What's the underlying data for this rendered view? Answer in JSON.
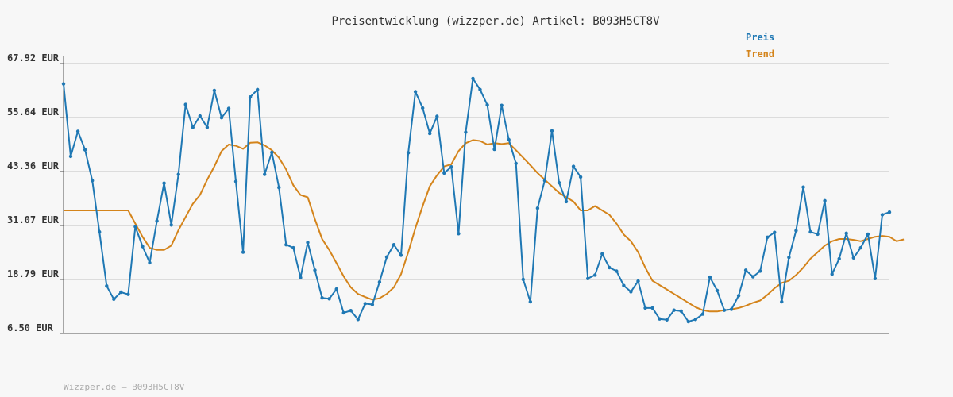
{
  "title": "Preisentwicklung (wizzper.de) Artikel: B093H5CT8V",
  "footer": "Wizzper.de – B093H5CT8V",
  "colors": {
    "preis": "#1f78b4",
    "trend": "#d4841b",
    "grid": "#dcdcdc",
    "axis": "#555555"
  },
  "chart_data": {
    "type": "line",
    "title": "Preisentwicklung (wizzper.de) Artikel: B093H5CT8V",
    "xlabel": "",
    "ylabel": "",
    "ylim": [
      6.5,
      67.92
    ],
    "y_ticks": [
      "67.92 EUR",
      "55.64 EUR",
      "43.36 EUR",
      "31.07 EUR",
      "18.79 EUR",
      "6.50 EUR"
    ],
    "y_tick_values": [
      67.92,
      55.64,
      43.36,
      31.07,
      18.79,
      6.5
    ],
    "grid": true,
    "legend_position": "top-right",
    "series": [
      {
        "name": "Preis",
        "values": [
          63.3,
          46.8,
          52.5,
          48.3,
          41.3,
          29.6,
          17.3,
          14.3,
          15.9,
          15.4,
          30.8,
          26.3,
          22.6,
          32.1,
          40.7,
          31.2,
          42.7,
          58.6,
          53.4,
          56.0,
          53.4,
          61.8,
          55.6,
          57.7,
          41.1,
          25.0,
          60.3,
          62.0,
          42.7,
          47.7,
          39.7,
          26.7,
          26.0,
          19.2,
          27.2,
          20.9,
          14.6,
          14.4,
          16.6,
          11.2,
          11.7,
          9.7,
          13.3,
          13.1,
          18.2,
          23.9,
          26.7,
          24.3,
          47.6,
          61.5,
          57.8,
          52.0,
          55.9,
          43.0,
          44.4,
          29.2,
          52.3,
          64.5,
          62.0,
          58.5,
          48.4,
          58.4,
          50.6,
          45.2,
          18.8,
          13.7,
          35.0,
          41.3,
          52.6,
          40.8,
          36.5,
          44.5,
          42.1,
          19.0,
          19.8,
          24.6,
          21.5,
          20.7,
          17.4,
          16.0,
          18.4,
          12.3,
          12.3,
          9.8,
          9.6,
          11.8,
          11.6,
          9.2,
          9.7,
          10.9,
          19.3,
          16.3,
          11.8,
          12.0,
          15.1,
          20.9,
          19.4,
          20.7,
          28.4,
          29.5,
          13.7,
          23.8,
          29.9,
          39.8,
          29.6,
          29.1,
          36.7,
          20.0,
          23.5,
          29.3,
          23.7,
          26.0,
          29.1,
          19.0,
          33.5,
          34.1
        ]
      },
      {
        "name": "Trend",
        "values": [
          34.5,
          34.5,
          34.5,
          34.5,
          34.5,
          34.5,
          34.5,
          34.5,
          34.5,
          34.5,
          31.5,
          28.5,
          26.0,
          25.5,
          25.5,
          26.5,
          30.0,
          33.0,
          36.0,
          38.0,
          41.5,
          44.5,
          48.0,
          49.5,
          49.2,
          48.5,
          49.9,
          50.0,
          49.3,
          48.2,
          46.5,
          43.8,
          40.2,
          38.0,
          37.5,
          32.5,
          28.0,
          25.5,
          22.5,
          19.5,
          17.0,
          15.5,
          14.8,
          14.2,
          14.5,
          15.5,
          17.0,
          20.0,
          25.0,
          30.5,
          35.5,
          40.0,
          42.5,
          44.5,
          45.0,
          48.0,
          49.8,
          50.5,
          50.3,
          49.5,
          49.8,
          49.6,
          49.8,
          48.2,
          46.5,
          44.8,
          43.0,
          41.5,
          40.0,
          38.5,
          37.5,
          36.5,
          34.5,
          34.5,
          35.5,
          34.5,
          33.5,
          31.5,
          29.0,
          27.5,
          25.0,
          21.5,
          18.5,
          17.5,
          16.5,
          15.5,
          14.5,
          13.5,
          12.5,
          11.8,
          11.5,
          11.5,
          11.8,
          12.0,
          12.3,
          12.8,
          13.5,
          14.0,
          15.3,
          16.8,
          18.0,
          18.5,
          19.8,
          21.5,
          23.5,
          25.0,
          26.5,
          27.5,
          28.0,
          28.0,
          27.8,
          27.5,
          28.0,
          28.5,
          28.7,
          28.5,
          27.5,
          27.9
        ]
      }
    ]
  }
}
